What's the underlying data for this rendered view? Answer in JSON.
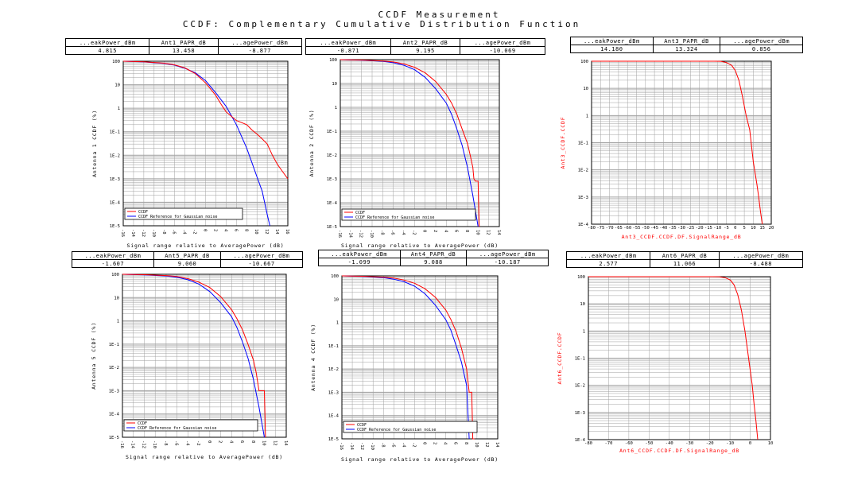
{
  "page": {
    "title": "CCDF Measurement",
    "subtitle": "CCDF: Complementary Cumulative Distribution Function"
  },
  "colors": {
    "ccdf": "#ff0000",
    "reference": "#0000ff",
    "grid": "#a0a0a0",
    "axis": "#000000"
  },
  "panels": [
    {
      "table": {
        "headers": [
          "...eakPower_dBm",
          "Ant1_PAPR_dB",
          "...agePower_dBm"
        ],
        "values": [
          "4.815",
          "13.458",
          "-8.877"
        ]
      },
      "ylabel": "Antenna 1 CCDF (%)",
      "xlabel": "Signal range relative to AveragePower (dB)",
      "yticks": [
        "100",
        "10",
        "1",
        "1E-1",
        "1E-2",
        "1E-3",
        "1E-4",
        "1E-5"
      ],
      "xticks": [
        "-16",
        "-14",
        "-12",
        "-10",
        "-8",
        "-6",
        "-4",
        "-2",
        "0",
        "2",
        "4",
        "6",
        "8",
        "10",
        "12",
        "14",
        "16"
      ],
      "legend": [
        "CCDF",
        "CCDF Reference for Gaussian noise"
      ],
      "legendBox": true
    },
    {
      "table": {
        "headers": [
          "...eakPower_dBm",
          "Ant2_PAPR_dB",
          "...agePower_dBm"
        ],
        "values": [
          "-0.871",
          "9.195",
          "-10.069"
        ]
      },
      "ylabel": "Antenna 2 CCDF (%)",
      "xlabel": "Signal range relative to AveragePower (dB)",
      "yticks": [
        "100",
        "10",
        "1",
        "1E-1",
        "1E-2",
        "1E-3",
        "1E-4",
        "1E-5"
      ],
      "xticks": [
        "-16",
        "-14",
        "-12",
        "-10",
        "-8",
        "-6",
        "-4",
        "-2",
        "0",
        "2",
        "4",
        "6",
        "8",
        "10",
        "12",
        "14"
      ],
      "legend": [
        "CCDF",
        "CCDF Reference for Gaussian noise"
      ],
      "legendBox": true
    },
    {
      "table": {
        "headers": [
          "...eakPower_dBm",
          "Ant3_PAPR_dB",
          "...agePower_dBm"
        ],
        "values": [
          "14.180",
          "13.324",
          "0.856"
        ]
      },
      "ylabel": "Ant3_CCDF.CCDF",
      "xlabel": "Ant3_CCDF.CCDF.DF.SignalRange_dB",
      "yticks": [
        "100",
        "10",
        "1",
        "1E-1",
        "1E-2",
        "1E-3",
        "1E-4"
      ],
      "xticks": [
        "-80",
        "-75",
        "-70",
        "-65",
        "-60",
        "-55",
        "-50",
        "-45",
        "-40",
        "-35",
        "-30",
        "-25",
        "-20",
        "-15",
        "-10",
        "-5",
        "0",
        "5",
        "10",
        "15",
        "20"
      ],
      "legend": [],
      "legendBox": false
    },
    {
      "table": {
        "headers": [
          "...eakPower_dBm",
          "Ant5_PAPR_dB",
          "...agePower_dBm"
        ],
        "values": [
          "-1.607",
          "9.060",
          "-10.667"
        ]
      },
      "ylabel": "Antenna 5 CCDF (%)",
      "xlabel": "Signal range relative to AveragePower (dB)",
      "yticks": [
        "100",
        "10",
        "1",
        "1E-1",
        "1E-2",
        "1E-3",
        "1E-4",
        "1E-5"
      ],
      "xticks": [
        "-16",
        "-14",
        "-12",
        "-10",
        "-8",
        "-6",
        "-4",
        "-2",
        "0",
        "2",
        "4",
        "6",
        "8",
        "10",
        "12",
        "14"
      ],
      "legend": [
        "CCDF",
        "CCDF Reference for Gaussian noise"
      ],
      "legendBox": true
    },
    {
      "table": {
        "headers": [
          "...eakPower_dBm",
          "Ant4_PAPR_dB",
          "...agePower_dBm"
        ],
        "values": [
          "-1.099",
          "9.088",
          "-10.187"
        ]
      },
      "ylabel": "Antenna 4 CCDF (%)",
      "xlabel": "Signal range relative to AveragePower (dB)",
      "yticks": [
        "100",
        "10",
        "1",
        "1E-1",
        "1E-2",
        "1E-3",
        "1E-4",
        "1E-5"
      ],
      "xticks": [
        "-16",
        "-14",
        "-12",
        "-10",
        "-8",
        "-6",
        "-4",
        "-2",
        "0",
        "2",
        "4",
        "6",
        "8",
        "10",
        "12",
        "14"
      ],
      "legend": [
        "CCDF",
        "CCDF Reference for Gaussian noise"
      ],
      "legendBox": true
    },
    {
      "table": {
        "headers": [
          "...eakPower_dBm",
          "Ant6_PAPR_dB",
          "...agePower_dBm"
        ],
        "values": [
          "2.577",
          "11.066",
          "-8.488"
        ]
      },
      "ylabel": "Ant6_CCDF.CCDF",
      "xlabel": "Ant6_CCDF.CCDF.DF.SignalRange_dB",
      "yticks": [
        "100",
        "10",
        "1",
        "1E-1",
        "1E-2",
        "1E-3",
        "1E-4"
      ],
      "xticks": [
        "-80",
        "-70",
        "-60",
        "-50",
        "-40",
        "-30",
        "-20",
        "-10",
        "0",
        "10"
      ],
      "legend": [],
      "legendBox": false
    }
  ],
  "chart_data": [
    {
      "type": "line",
      "xlim": [
        -16,
        16
      ],
      "ylim_decades": [
        -5,
        2
      ],
      "yscale": "log",
      "series": [
        {
          "name": "CCDF",
          "color": "#ff0000",
          "x": [
            -16,
            -12,
            -8,
            -6,
            -4,
            -2,
            0,
            2,
            3,
            4,
            6,
            8,
            9,
            10,
            11,
            12,
            13,
            14,
            15,
            16
          ],
          "y": [
            100,
            95,
            82,
            70,
            52,
            30,
            12,
            3.5,
            1.5,
            0.7,
            0.3,
            0.2,
            0.12,
            0.08,
            0.05,
            0.03,
            0.01,
            0.004,
            0.002,
            0.001
          ]
        },
        {
          "name": "CCDF Reference for Gaussian noise",
          "color": "#0000ff",
          "x": [
            -16,
            -12,
            -8,
            -6,
            -4,
            -2,
            0,
            2,
            4,
            6,
            8,
            9,
            10,
            11,
            12,
            12.5
          ],
          "y": [
            100,
            93,
            80,
            68,
            50,
            32,
            15,
            4.5,
            1.2,
            0.2,
            0.02,
            0.005,
            0.0012,
            0.0003,
            3e-05,
            1e-05
          ]
        }
      ]
    },
    {
      "type": "line",
      "xlim": [
        -16,
        14
      ],
      "ylim_decades": [
        -5,
        2
      ],
      "yscale": "log",
      "series": [
        {
          "name": "CCDF",
          "color": "#ff0000",
          "x": [
            -16,
            -12,
            -8,
            -6,
            -4,
            -2,
            0,
            2,
            4,
            5,
            6,
            7,
            8,
            8.5,
            9,
            9.2,
            9.5,
            10,
            10.2
          ],
          "y": [
            100,
            96,
            88,
            80,
            66,
            48,
            28,
            12,
            3.5,
            1.5,
            0.5,
            0.12,
            0.03,
            0.01,
            0.003,
            0.001,
            0.0008,
            0.0008,
            1e-05
          ]
        },
        {
          "name": "CCDF Reference for Gaussian noise",
          "color": "#0000ff",
          "x": [
            -16,
            -12,
            -8,
            -6,
            -4,
            -2,
            0,
            2,
            4,
            5,
            6,
            7,
            8,
            9,
            10
          ],
          "y": [
            100,
            95,
            85,
            74,
            58,
            38,
            18,
            6,
            1.5,
            0.5,
            0.12,
            0.025,
            0.003,
            0.0002,
            1e-05
          ]
        }
      ]
    },
    {
      "type": "line",
      "xlim": [
        -80,
        20
      ],
      "ylim_decades": [
        -4,
        2
      ],
      "yscale": "log",
      "series": [
        {
          "name": "CCDF",
          "color": "#ff0000",
          "x": [
            -80,
            -40,
            -20,
            -12,
            -8,
            -5,
            -2,
            0,
            2,
            4,
            6,
            8,
            10,
            12,
            13,
            14,
            15
          ],
          "y": [
            100,
            100,
            100,
            100,
            99,
            90,
            70,
            45,
            20,
            5,
            1,
            0.3,
            0.02,
            0.003,
            0.001,
            0.0003,
            0.0001
          ]
        }
      ]
    },
    {
      "type": "line",
      "xlim": [
        -16,
        14
      ],
      "ylim_decades": [
        -5,
        2
      ],
      "yscale": "log",
      "series": [
        {
          "name": "CCDF",
          "color": "#ff0000",
          "x": [
            -16,
            -12,
            -8,
            -6,
            -4,
            -2,
            0,
            2,
            4,
            5,
            6,
            7,
            8,
            8.5,
            9,
            9.5,
            10,
            10.2
          ],
          "y": [
            100,
            96,
            88,
            80,
            65,
            46,
            27,
            11,
            3,
            1.2,
            0.4,
            0.1,
            0.02,
            0.006,
            0.001,
            0.001,
            0.001,
            1e-05
          ]
        },
        {
          "name": "CCDF Reference for Gaussian noise",
          "color": "#0000ff",
          "x": [
            -16,
            -12,
            -8,
            -6,
            -4,
            -2,
            0,
            2,
            4,
            5,
            6,
            7,
            8,
            9,
            10
          ],
          "y": [
            100,
            95,
            85,
            74,
            58,
            38,
            18,
            6,
            1.5,
            0.5,
            0.12,
            0.025,
            0.003,
            0.0002,
            1e-05
          ]
        }
      ]
    },
    {
      "type": "line",
      "xlim": [
        -16,
        14
      ],
      "ylim_decades": [
        -5,
        2
      ],
      "yscale": "log",
      "series": [
        {
          "name": "CCDF",
          "color": "#ff0000",
          "x": [
            -16,
            -12,
            -8,
            -6,
            -4,
            -2,
            0,
            2,
            4,
            5,
            6,
            7,
            8,
            8.5,
            9,
            9.2,
            9.5
          ],
          "y": [
            100,
            96,
            88,
            80,
            66,
            48,
            28,
            12,
            3.4,
            1.3,
            0.4,
            0.08,
            0.01,
            0.001,
            0.001,
            1e-05,
            1e-05
          ]
        },
        {
          "name": "CCDF Reference for Gaussian noise",
          "color": "#0000ff",
          "x": [
            -16,
            -12,
            -8,
            -6,
            -4,
            -2,
            0,
            2,
            4,
            5,
            6,
            7,
            8,
            8.5
          ],
          "y": [
            100,
            95,
            84,
            72,
            56,
            36,
            17,
            5.5,
            1.3,
            0.45,
            0.1,
            0.02,
            0.002,
            1e-05
          ]
        }
      ]
    },
    {
      "type": "line",
      "xlim": [
        -80,
        20
      ],
      "ylim_decades": [
        -4,
        2
      ],
      "yscale": "log",
      "series": [
        {
          "name": "CCDF",
          "color": "#ff0000",
          "x": [
            -80,
            -40,
            -20,
            -12,
            -8,
            -5,
            -2,
            0,
            2,
            4,
            6,
            8,
            10,
            11,
            12,
            13
          ],
          "y": [
            100,
            100,
            100,
            100,
            99,
            92,
            75,
            50,
            22,
            6,
            1,
            0.1,
            0.01,
            0.002,
            0.0005,
            0.0001
          ]
        }
      ]
    }
  ]
}
